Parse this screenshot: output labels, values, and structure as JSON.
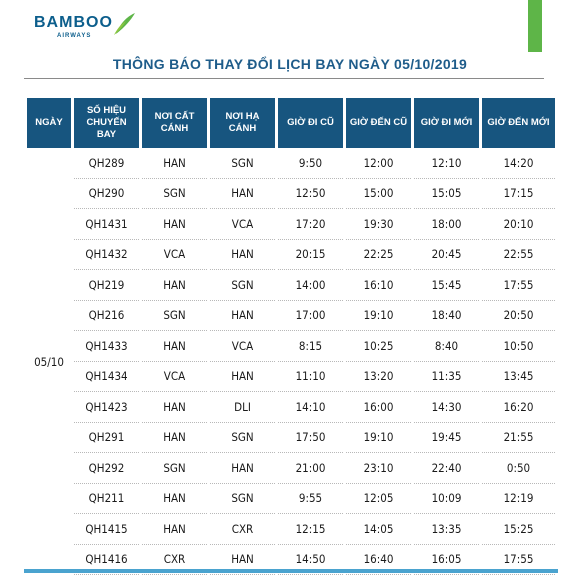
{
  "brand": {
    "name": "BAMBOO",
    "sub": "AIRWAYS",
    "brand_color": "#0c5e8c",
    "accent_green": "#5eb548"
  },
  "title": "THÔNG BÁO THAY ĐỔI LỊCH BAY NGÀY 05/10/2019",
  "table": {
    "header_color": "#17557f",
    "columns": [
      "NGÀY",
      "SỐ HIỆU CHUYẾN BAY",
      "NƠI CẤT CÁNH",
      "NƠI HẠ CÁNH",
      "GIỜ ĐI CŨ",
      "GIỜ ĐẾN CŨ",
      "GIỜ ĐI MỚI",
      "GIỜ ĐẾN MỚI"
    ],
    "date": "05/10",
    "rows": [
      [
        "QH289",
        "HAN",
        "SGN",
        "9:50",
        "12:00",
        "12:10",
        "14:20"
      ],
      [
        "QH290",
        "SGN",
        "HAN",
        "12:50",
        "15:00",
        "15:05",
        "17:15"
      ],
      [
        "QH1431",
        "HAN",
        "VCA",
        "17:20",
        "19:30",
        "18:00",
        "20:10"
      ],
      [
        "QH1432",
        "VCA",
        "HAN",
        "20:15",
        "22:25",
        "20:45",
        "22:55"
      ],
      [
        "QH219",
        "HAN",
        "SGN",
        "14:00",
        "16:10",
        "15:45",
        "17:55"
      ],
      [
        "QH216",
        "SGN",
        "HAN",
        "17:00",
        "19:10",
        "18:40",
        "20:50"
      ],
      [
        "QH1433",
        "HAN",
        "VCA",
        "8:15",
        "10:25",
        "8:40",
        "10:50"
      ],
      [
        "QH1434",
        "VCA",
        "HAN",
        "11:10",
        "13:20",
        "11:35",
        "13:45"
      ],
      [
        "QH1423",
        "HAN",
        "DLI",
        "14:10",
        "16:00",
        "14:30",
        "16:20"
      ],
      [
        "QH291",
        "HAN",
        "SGN",
        "17:50",
        "19:10",
        "19:45",
        "21:55"
      ],
      [
        "QH292",
        "SGN",
        "HAN",
        "21:00",
        "23:10",
        "22:40",
        "0:50"
      ],
      [
        "QH211",
        "HAN",
        "SGN",
        "9:55",
        "12:05",
        "10:09",
        "12:19"
      ],
      [
        "QH1415",
        "HAN",
        "CXR",
        "12:15",
        "14:05",
        "13:35",
        "15:25"
      ],
      [
        "QH1416",
        "CXR",
        "HAN",
        "14:50",
        "16:40",
        "16:05",
        "17:55"
      ]
    ]
  }
}
